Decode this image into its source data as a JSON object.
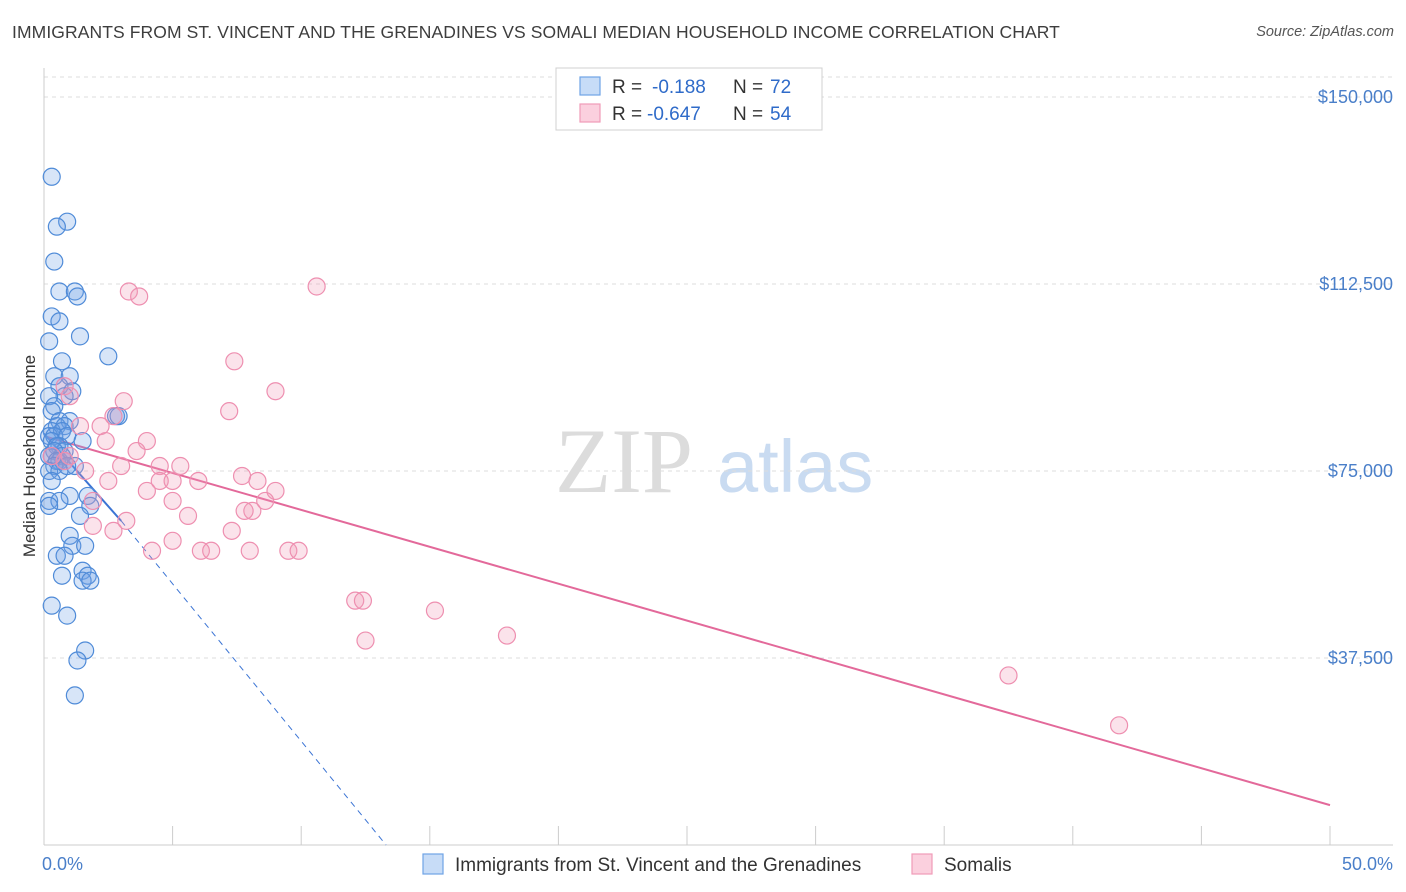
{
  "title": "IMMIGRANTS FROM ST. VINCENT AND THE GRENADINES VS SOMALI MEDIAN HOUSEHOLD INCOME CORRELATION CHART",
  "source": "Source: ZipAtlas.com",
  "watermark": {
    "zip": "ZIP",
    "atlas": "atlas"
  },
  "colors": {
    "blue": "#6fa3e6",
    "blue_line": "#3b74d4",
    "pink": "#f19bb8",
    "pink_line": "#e3699a",
    "tick": "#4a7fc9"
  },
  "legend": {
    "rows": [
      {
        "r_label": "R =",
        "r_value": "-0.188",
        "n_label": "N =",
        "n_value": "72"
      },
      {
        "r_label": "R =",
        "r_value": "-0.647",
        "n_label": "N =",
        "n_value": "54"
      }
    ]
  },
  "bottom_legend": [
    "Immigrants from St. Vincent and the Grenadines",
    "Somalis"
  ],
  "chart_data": {
    "type": "scatter",
    "title": "IMMIGRANTS FROM ST. VINCENT AND THE GRENADINES VS SOMALI MEDIAN HOUSEHOLD INCOME CORRELATION CHART",
    "xlabel": "",
    "ylabel": "Median Household Income",
    "xlim": [
      0,
      50
    ],
    "ylim": [
      0,
      155000
    ],
    "x_tick_labels": [
      "0.0%",
      "50.0%"
    ],
    "y_ticks": [
      37500,
      75000,
      112500,
      150000
    ],
    "y_tick_labels": [
      "$37,500",
      "$75,000",
      "$112,500",
      "$150,000"
    ],
    "series": [
      {
        "name": "Immigrants from St. Vincent and the Grenadines",
        "r": -0.188,
        "n": 72,
        "points": [
          [
            0.3,
            134000
          ],
          [
            0.9,
            125000
          ],
          [
            0.5,
            124000
          ],
          [
            0.4,
            117000
          ],
          [
            0.6,
            111000
          ],
          [
            1.2,
            111000
          ],
          [
            1.3,
            110000
          ],
          [
            0.3,
            106000
          ],
          [
            0.6,
            105000
          ],
          [
            1.4,
            102000
          ],
          [
            0.2,
            101000
          ],
          [
            2.5,
            98000
          ],
          [
            0.7,
            97000
          ],
          [
            0.4,
            94000
          ],
          [
            1.0,
            94000
          ],
          [
            0.6,
            92000
          ],
          [
            1.1,
            91000
          ],
          [
            0.8,
            90000
          ],
          [
            0.2,
            90000
          ],
          [
            0.4,
            88000
          ],
          [
            0.3,
            87000
          ],
          [
            2.8,
            86000
          ],
          [
            2.9,
            86000
          ],
          [
            0.6,
            85000
          ],
          [
            1.0,
            85000
          ],
          [
            0.5,
            84000
          ],
          [
            0.8,
            84000
          ],
          [
            0.3,
            83000
          ],
          [
            0.7,
            83000
          ],
          [
            0.2,
            82000
          ],
          [
            0.4,
            82000
          ],
          [
            0.9,
            82000
          ],
          [
            1.5,
            81000
          ],
          [
            0.3,
            81000
          ],
          [
            0.6,
            80000
          ],
          [
            0.5,
            80000
          ],
          [
            0.8,
            79000
          ],
          [
            0.4,
            79000
          ],
          [
            0.2,
            78000
          ],
          [
            0.7,
            78000
          ],
          [
            0.3,
            78000
          ],
          [
            0.6,
            77000
          ],
          [
            0.5,
            77000
          ],
          [
            0.8,
            77000
          ],
          [
            0.4,
            76000
          ],
          [
            0.2,
            75000
          ],
          [
            0.6,
            75000
          ],
          [
            1.7,
            70000
          ],
          [
            1.0,
            70000
          ],
          [
            0.2,
            69000
          ],
          [
            0.6,
            69000
          ],
          [
            0.2,
            68000
          ],
          [
            1.8,
            68000
          ],
          [
            1.4,
            66000
          ],
          [
            1.0,
            62000
          ],
          [
            1.1,
            60000
          ],
          [
            1.6,
            60000
          ],
          [
            0.5,
            58000
          ],
          [
            0.8,
            58000
          ],
          [
            1.5,
            55000
          ],
          [
            0.7,
            54000
          ],
          [
            1.7,
            54000
          ],
          [
            1.5,
            53000
          ],
          [
            1.8,
            53000
          ],
          [
            0.3,
            48000
          ],
          [
            0.9,
            46000
          ],
          [
            1.6,
            39000
          ],
          [
            1.3,
            37000
          ],
          [
            1.2,
            30000
          ],
          [
            0.3,
            73000
          ],
          [
            1.2,
            76000
          ],
          [
            0.9,
            76000
          ]
        ],
        "trend": [
          [
            0,
            82500
          ],
          [
            3.0,
            65000
          ]
        ],
        "trend_ext": [
          [
            3.0,
            65000
          ],
          [
            13.3,
            0
          ]
        ]
      },
      {
        "name": "Somalis",
        "r": -0.647,
        "n": 54,
        "points": [
          [
            3.3,
            111000
          ],
          [
            3.7,
            110000
          ],
          [
            10.6,
            112000
          ],
          [
            7.4,
            97000
          ],
          [
            9.0,
            91000
          ],
          [
            0.8,
            92000
          ],
          [
            1.0,
            90000
          ],
          [
            3.1,
            89000
          ],
          [
            7.2,
            87000
          ],
          [
            2.7,
            86000
          ],
          [
            2.2,
            84000
          ],
          [
            1.4,
            84000
          ],
          [
            2.4,
            81000
          ],
          [
            4.0,
            81000
          ],
          [
            3.6,
            79000
          ],
          [
            0.3,
            78000
          ],
          [
            1.0,
            78000
          ],
          [
            0.8,
            77000
          ],
          [
            3.0,
            76000
          ],
          [
            4.5,
            76000
          ],
          [
            5.3,
            76000
          ],
          [
            1.6,
            75000
          ],
          [
            2.5,
            73000
          ],
          [
            7.7,
            74000
          ],
          [
            8.3,
            73000
          ],
          [
            4.5,
            73000
          ],
          [
            5.0,
            73000
          ],
          [
            6.0,
            73000
          ],
          [
            4.0,
            71000
          ],
          [
            9.0,
            71000
          ],
          [
            5.0,
            69000
          ],
          [
            8.6,
            69000
          ],
          [
            1.9,
            69000
          ],
          [
            8.1,
            67000
          ],
          [
            7.8,
            67000
          ],
          [
            5.6,
            66000
          ],
          [
            3.2,
            65000
          ],
          [
            1.9,
            64000
          ],
          [
            7.3,
            63000
          ],
          [
            2.7,
            63000
          ],
          [
            5.0,
            61000
          ],
          [
            6.1,
            59000
          ],
          [
            4.2,
            59000
          ],
          [
            6.5,
            59000
          ],
          [
            8.0,
            59000
          ],
          [
            9.5,
            59000
          ],
          [
            9.9,
            59000
          ],
          [
            12.1,
            49000
          ],
          [
            12.4,
            49000
          ],
          [
            15.2,
            47000
          ],
          [
            12.5,
            41000
          ],
          [
            18.0,
            42000
          ],
          [
            37.5,
            34000
          ],
          [
            41.8,
            24000
          ]
        ],
        "trend": [
          [
            0,
            82000
          ],
          [
            50,
            8000
          ]
        ]
      }
    ]
  }
}
